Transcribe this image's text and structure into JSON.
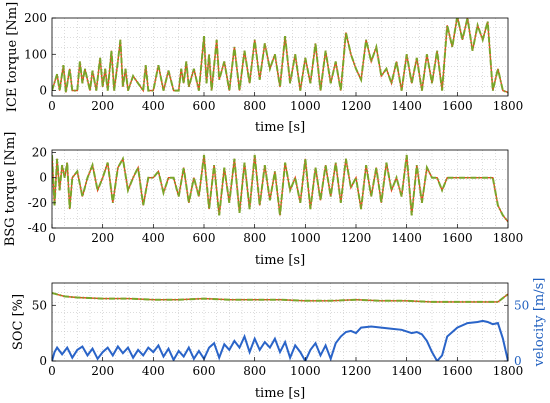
{
  "colors": {
    "series_a": "#e04a1f",
    "series_b": "#7aa52a",
    "velocity": "#2a64c8",
    "velocity_axis": "#1f5fbf"
  },
  "chart_data": [
    {
      "type": "line",
      "xlabel": "time [s]",
      "ylabel": "ICE torque [Nm]",
      "xlim": [
        0,
        1800
      ],
      "ylim": [
        -15,
        200
      ],
      "xticks": [
        "0",
        "200",
        "400",
        "600",
        "800",
        "1000",
        "1200",
        "1400",
        "1600",
        "1800"
      ],
      "yticks": [
        "0",
        "100",
        "200"
      ],
      "grid": true,
      "series": [
        {
          "values_x": [
            0,
            20,
            30,
            45,
            55,
            70,
            80,
            100,
            110,
            120,
            130,
            150,
            160,
            175,
            190,
            200,
            210,
            220,
            235,
            245,
            260,
            270,
            280,
            290,
            300,
            320,
            340,
            360,
            370,
            380,
            400,
            420,
            440,
            460,
            480,
            500,
            510,
            520,
            530,
            540,
            560,
            580,
            600,
            610,
            620,
            630,
            650,
            660,
            680,
            700,
            720,
            740,
            760,
            780,
            800,
            820,
            840,
            860,
            880,
            900,
            920,
            940,
            960,
            980,
            1000,
            1020,
            1040,
            1060,
            1080,
            1100,
            1120,
            1140,
            1160,
            1180,
            1200,
            1220,
            1240,
            1260,
            1280,
            1300,
            1320,
            1340,
            1360,
            1380,
            1400,
            1420,
            1440,
            1460,
            1480,
            1500,
            1520,
            1540,
            1560,
            1580,
            1600,
            1620,
            1640,
            1660,
            1680,
            1700,
            1720,
            1740,
            1760,
            1780,
            1800
          ],
          "values_y": [
            0,
            45,
            0,
            70,
            -5,
            60,
            0,
            0,
            80,
            20,
            60,
            0,
            55,
            0,
            90,
            10,
            60,
            0,
            110,
            0,
            80,
            140,
            10,
            60,
            0,
            40,
            20,
            0,
            70,
            0,
            0,
            70,
            0,
            55,
            0,
            0,
            60,
            20,
            80,
            10,
            60,
            0,
            150,
            20,
            100,
            0,
            140,
            30,
            80,
            0,
            120,
            0,
            110,
            20,
            140,
            30,
            130,
            60,
            100,
            10,
            150,
            20,
            100,
            0,
            90,
            20,
            130,
            0,
            110,
            20,
            80,
            0,
            160,
            100,
            60,
            30,
            140,
            80,
            120,
            40,
            60,
            20,
            80,
            0,
            100,
            20,
            90,
            0,
            100,
            20,
            110,
            0,
            180,
            120,
            205,
            140,
            200,
            110,
            180,
            140,
            190,
            0,
            60,
            0,
            -5
          ]
        }
      ]
    },
    {
      "type": "line",
      "xlabel": "time [s]",
      "ylabel": "BSG torque [Nm]",
      "xlim": [
        0,
        1800
      ],
      "ylim": [
        -40,
        22
      ],
      "xticks": [
        "0",
        "200",
        "400",
        "600",
        "800",
        "1000",
        "1200",
        "1400",
        "1600",
        "1800"
      ],
      "yticks": [
        "-40",
        "-20",
        "0",
        "20"
      ],
      "grid": true,
      "series": [
        {
          "values_x": [
            0,
            10,
            20,
            30,
            40,
            50,
            60,
            70,
            80,
            100,
            120,
            140,
            160,
            180,
            200,
            220,
            240,
            260,
            280,
            300,
            320,
            340,
            360,
            380,
            400,
            420,
            440,
            460,
            480,
            500,
            520,
            540,
            560,
            580,
            600,
            620,
            640,
            660,
            680,
            700,
            720,
            740,
            760,
            780,
            800,
            820,
            840,
            860,
            880,
            900,
            920,
            940,
            960,
            980,
            1000,
            1020,
            1040,
            1060,
            1080,
            1100,
            1120,
            1140,
            1160,
            1180,
            1200,
            1220,
            1240,
            1260,
            1280,
            1300,
            1320,
            1340,
            1360,
            1380,
            1400,
            1420,
            1440,
            1460,
            1480,
            1500,
            1520,
            1540,
            1560,
            1580,
            1600,
            1620,
            1640,
            1660,
            1680,
            1700,
            1720,
            1740,
            1760,
            1780,
            1800
          ],
          "values_y": [
            18,
            -22,
            15,
            -10,
            10,
            0,
            12,
            -25,
            0,
            5,
            -15,
            0,
            10,
            -10,
            0,
            12,
            -20,
            8,
            15,
            -10,
            0,
            8,
            -22,
            0,
            0,
            5,
            -12,
            0,
            0,
            -15,
            8,
            -20,
            0,
            -15,
            18,
            -25,
            10,
            -30,
            8,
            -20,
            15,
            -28,
            12,
            -25,
            18,
            -22,
            10,
            -18,
            5,
            -30,
            12,
            -10,
            0,
            -20,
            15,
            -25,
            8,
            -18,
            10,
            -15,
            12,
            -20,
            15,
            -8,
            0,
            -25,
            10,
            -15,
            8,
            -20,
            12,
            -10,
            0,
            -15,
            18,
            -30,
            10,
            -20,
            8,
            0,
            0,
            -10,
            0,
            0,
            0,
            0,
            0,
            0,
            0,
            0,
            0,
            0,
            -22,
            -30,
            -35
          ]
        }
      ]
    },
    {
      "type": "line",
      "xlabel": "time [s]",
      "ylabel": "SOC [%]",
      "ylabel_right": "velocity [m/s]",
      "xlim": [
        0,
        1800
      ],
      "ylim": [
        0,
        70
      ],
      "ylim_right": [
        0,
        70
      ],
      "xticks": [
        "0",
        "200",
        "400",
        "600",
        "800",
        "1000",
        "1200",
        "1400",
        "1600",
        "1800"
      ],
      "yticks": [
        "0",
        "50"
      ],
      "yticks_right": [
        "0",
        "50"
      ],
      "grid": true,
      "series": [
        {
          "axis": "left",
          "values_x": [
            0,
            50,
            100,
            200,
            300,
            400,
            500,
            600,
            700,
            800,
            900,
            1000,
            1100,
            1200,
            1300,
            1400,
            1500,
            1600,
            1700,
            1760,
            1800
          ],
          "values_y": [
            61,
            58,
            57,
            56,
            56,
            55,
            55,
            56,
            55,
            55,
            55,
            54,
            54,
            55,
            54,
            54,
            53,
            53,
            53,
            53,
            60
          ]
        },
        {
          "axis": "right",
          "values_x": [
            0,
            10,
            20,
            40,
            60,
            80,
            100,
            120,
            140,
            160,
            180,
            200,
            220,
            240,
            260,
            280,
            300,
            320,
            340,
            360,
            380,
            400,
            420,
            440,
            460,
            480,
            500,
            520,
            540,
            560,
            580,
            600,
            620,
            640,
            660,
            680,
            700,
            720,
            740,
            760,
            780,
            800,
            820,
            840,
            860,
            880,
            900,
            920,
            940,
            960,
            980,
            1000,
            1020,
            1040,
            1060,
            1080,
            1100,
            1120,
            1140,
            1160,
            1180,
            1200,
            1220,
            1260,
            1300,
            1340,
            1380,
            1420,
            1440,
            1460,
            1480,
            1500,
            1520,
            1540,
            1560,
            1600,
            1640,
            1680,
            1700,
            1720,
            1740,
            1760,
            1780,
            1800
          ],
          "values_y": [
            0,
            8,
            12,
            6,
            12,
            3,
            10,
            13,
            5,
            11,
            2,
            8,
            12,
            5,
            13,
            7,
            12,
            3,
            10,
            5,
            12,
            8,
            14,
            4,
            11,
            1,
            9,
            4,
            12,
            2,
            9,
            2,
            12,
            16,
            3,
            15,
            10,
            18,
            12,
            22,
            8,
            20,
            10,
            17,
            12,
            20,
            8,
            17,
            3,
            14,
            8,
            0,
            10,
            16,
            5,
            14,
            2,
            16,
            22,
            26,
            27,
            25,
            30,
            31,
            30,
            29,
            28,
            25,
            26,
            24,
            18,
            8,
            0,
            5,
            22,
            30,
            34,
            35,
            36,
            35,
            33,
            34,
            20,
            0
          ]
        }
      ]
    }
  ]
}
